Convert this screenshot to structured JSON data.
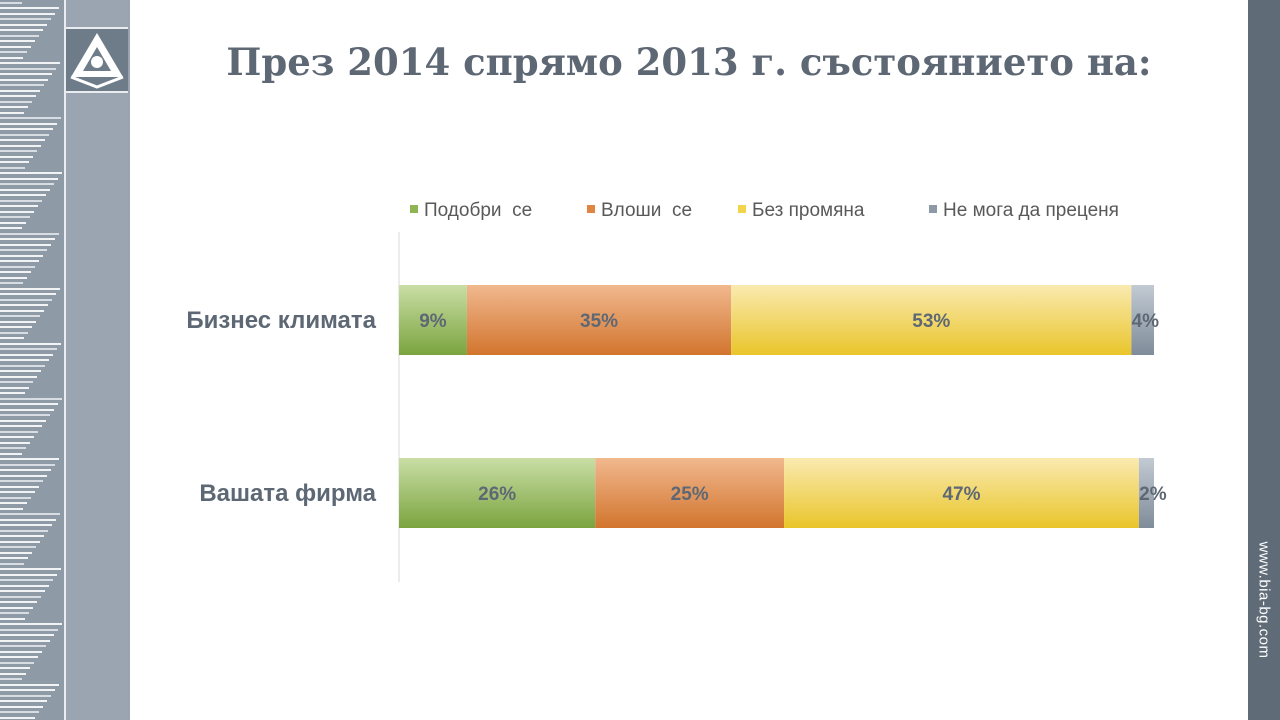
{
  "header": {
    "title": "През 2014 спрямо 2013 г. състоянието на:",
    "logo_icon": "bia-logo-icon"
  },
  "sidebar": {
    "website": "www.bia-bg.com"
  },
  "colors": {
    "improved": "#8fb453",
    "worse": "#df8541",
    "unchanged": "#f2d44a",
    "cannot_judge": "#8d99a6",
    "label": "#5d6874"
  },
  "chart_data": {
    "type": "bar",
    "orientation": "horizontal",
    "stacked": true,
    "categories": [
      "Бизнес климата",
      "Вашата фирма"
    ],
    "series": [
      {
        "name": "Подобри  се",
        "values": [
          9,
          26
        ],
        "labels": [
          "9%",
          "26%"
        ]
      },
      {
        "name": "Влоши  се",
        "values": [
          35,
          25
        ],
        "labels": [
          "35%",
          "25%"
        ]
      },
      {
        "name": "Без промяна",
        "values": [
          53,
          47
        ],
        "labels": [
          "53%",
          "47%"
        ]
      },
      {
        "name": "Не мога да преценя",
        "values": [
          4,
          2
        ],
        "labels": [
          "4%",
          "2%"
        ]
      }
    ],
    "xlim": [
      0,
      100
    ],
    "legend": "top",
    "grid": false
  }
}
